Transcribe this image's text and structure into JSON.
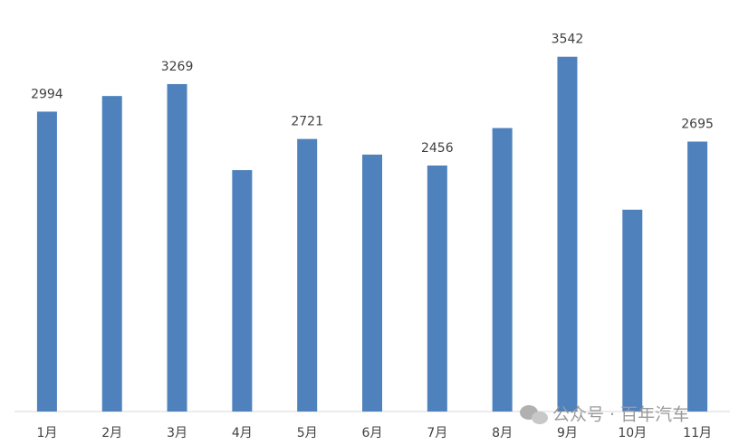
{
  "chart_data": {
    "type": "bar",
    "categories": [
      "1月",
      "2月",
      "3月",
      "4月",
      "5月",
      "6月",
      "7月",
      "8月",
      "9月",
      "10月",
      "11月"
    ],
    "values": [
      2994,
      3150,
      3269,
      2410,
      2721,
      2565,
      2456,
      2830,
      3542,
      2015,
      2695
    ],
    "value_labels": [
      "2994",
      null,
      "3269",
      null,
      "2721",
      null,
      "2456",
      null,
      "3542",
      null,
      "2695"
    ],
    "color": "#4f81bd",
    "ylim": [
      0,
      4000
    ],
    "watermark": "公众号 · 百年汽车"
  }
}
